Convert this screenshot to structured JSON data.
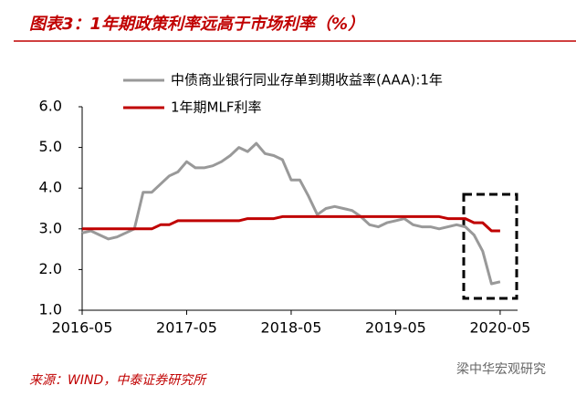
{
  "chart_data": {
    "type": "line",
    "title": "图表3：1年期政策利率远高于市场利率（%）",
    "source": "来源：WIND，中泰证券研究所",
    "watermark": "梁中华宏观研究",
    "x": [
      "2016-05",
      "2016-06",
      "2016-07",
      "2016-08",
      "2016-09",
      "2016-10",
      "2016-11",
      "2016-12",
      "2017-01",
      "2017-02",
      "2017-03",
      "2017-04",
      "2017-05",
      "2017-06",
      "2017-07",
      "2017-08",
      "2017-09",
      "2017-10",
      "2017-11",
      "2017-12",
      "2018-01",
      "2018-02",
      "2018-03",
      "2018-04",
      "2018-05",
      "2018-06",
      "2018-07",
      "2018-08",
      "2018-09",
      "2018-10",
      "2018-11",
      "2018-12",
      "2019-01",
      "2019-02",
      "2019-03",
      "2019-04",
      "2019-05",
      "2019-06",
      "2019-07",
      "2019-08",
      "2019-09",
      "2019-10",
      "2019-11",
      "2019-12",
      "2020-01",
      "2020-02",
      "2020-03",
      "2020-04",
      "2020-05"
    ],
    "series": [
      {
        "name": "中债商业银行同业存单到期收益率(AAA):1年",
        "color": "#999999",
        "values": [
          2.9,
          2.95,
          2.85,
          2.75,
          2.8,
          2.9,
          3.0,
          3.9,
          3.9,
          4.1,
          4.3,
          4.4,
          4.65,
          4.5,
          4.5,
          4.55,
          4.65,
          4.8,
          5.0,
          4.9,
          5.1,
          4.85,
          4.8,
          4.7,
          4.2,
          4.2,
          3.8,
          3.35,
          3.5,
          3.55,
          3.5,
          3.45,
          3.3,
          3.1,
          3.05,
          3.15,
          3.2,
          3.25,
          3.1,
          3.05,
          3.05,
          3.0,
          3.05,
          3.1,
          3.05,
          2.85,
          2.45,
          1.65,
          1.7
        ]
      },
      {
        "name": "1年期MLF利率",
        "color": "#c00000",
        "values": [
          3.0,
          3.0,
          3.0,
          3.0,
          3.0,
          3.0,
          3.0,
          3.0,
          3.0,
          3.1,
          3.1,
          3.2,
          3.2,
          3.2,
          3.2,
          3.2,
          3.2,
          3.2,
          3.2,
          3.25,
          3.25,
          3.25,
          3.25,
          3.3,
          3.3,
          3.3,
          3.3,
          3.3,
          3.3,
          3.3,
          3.3,
          3.3,
          3.3,
          3.3,
          3.3,
          3.3,
          3.3,
          3.3,
          3.3,
          3.3,
          3.3,
          3.3,
          3.25,
          3.25,
          3.25,
          3.15,
          3.15,
          2.95,
          2.95
        ]
      }
    ],
    "xlim": [
      "2016-05",
      "2020-07"
    ],
    "xticks": [
      "2016-05",
      "2017-05",
      "2018-05",
      "2019-05",
      "2020-05"
    ],
    "ylim": [
      1,
      6
    ],
    "yticks": [
      {
        "value": 1,
        "label": "1.0"
      },
      {
        "value": 2,
        "label": "2.0"
      },
      {
        "value": 3,
        "label": "3.0"
      },
      {
        "value": 4,
        "label": "4.0"
      },
      {
        "value": 5,
        "label": "5.0"
      },
      {
        "value": 6,
        "label": "6.0"
      }
    ],
    "grid": false
  }
}
